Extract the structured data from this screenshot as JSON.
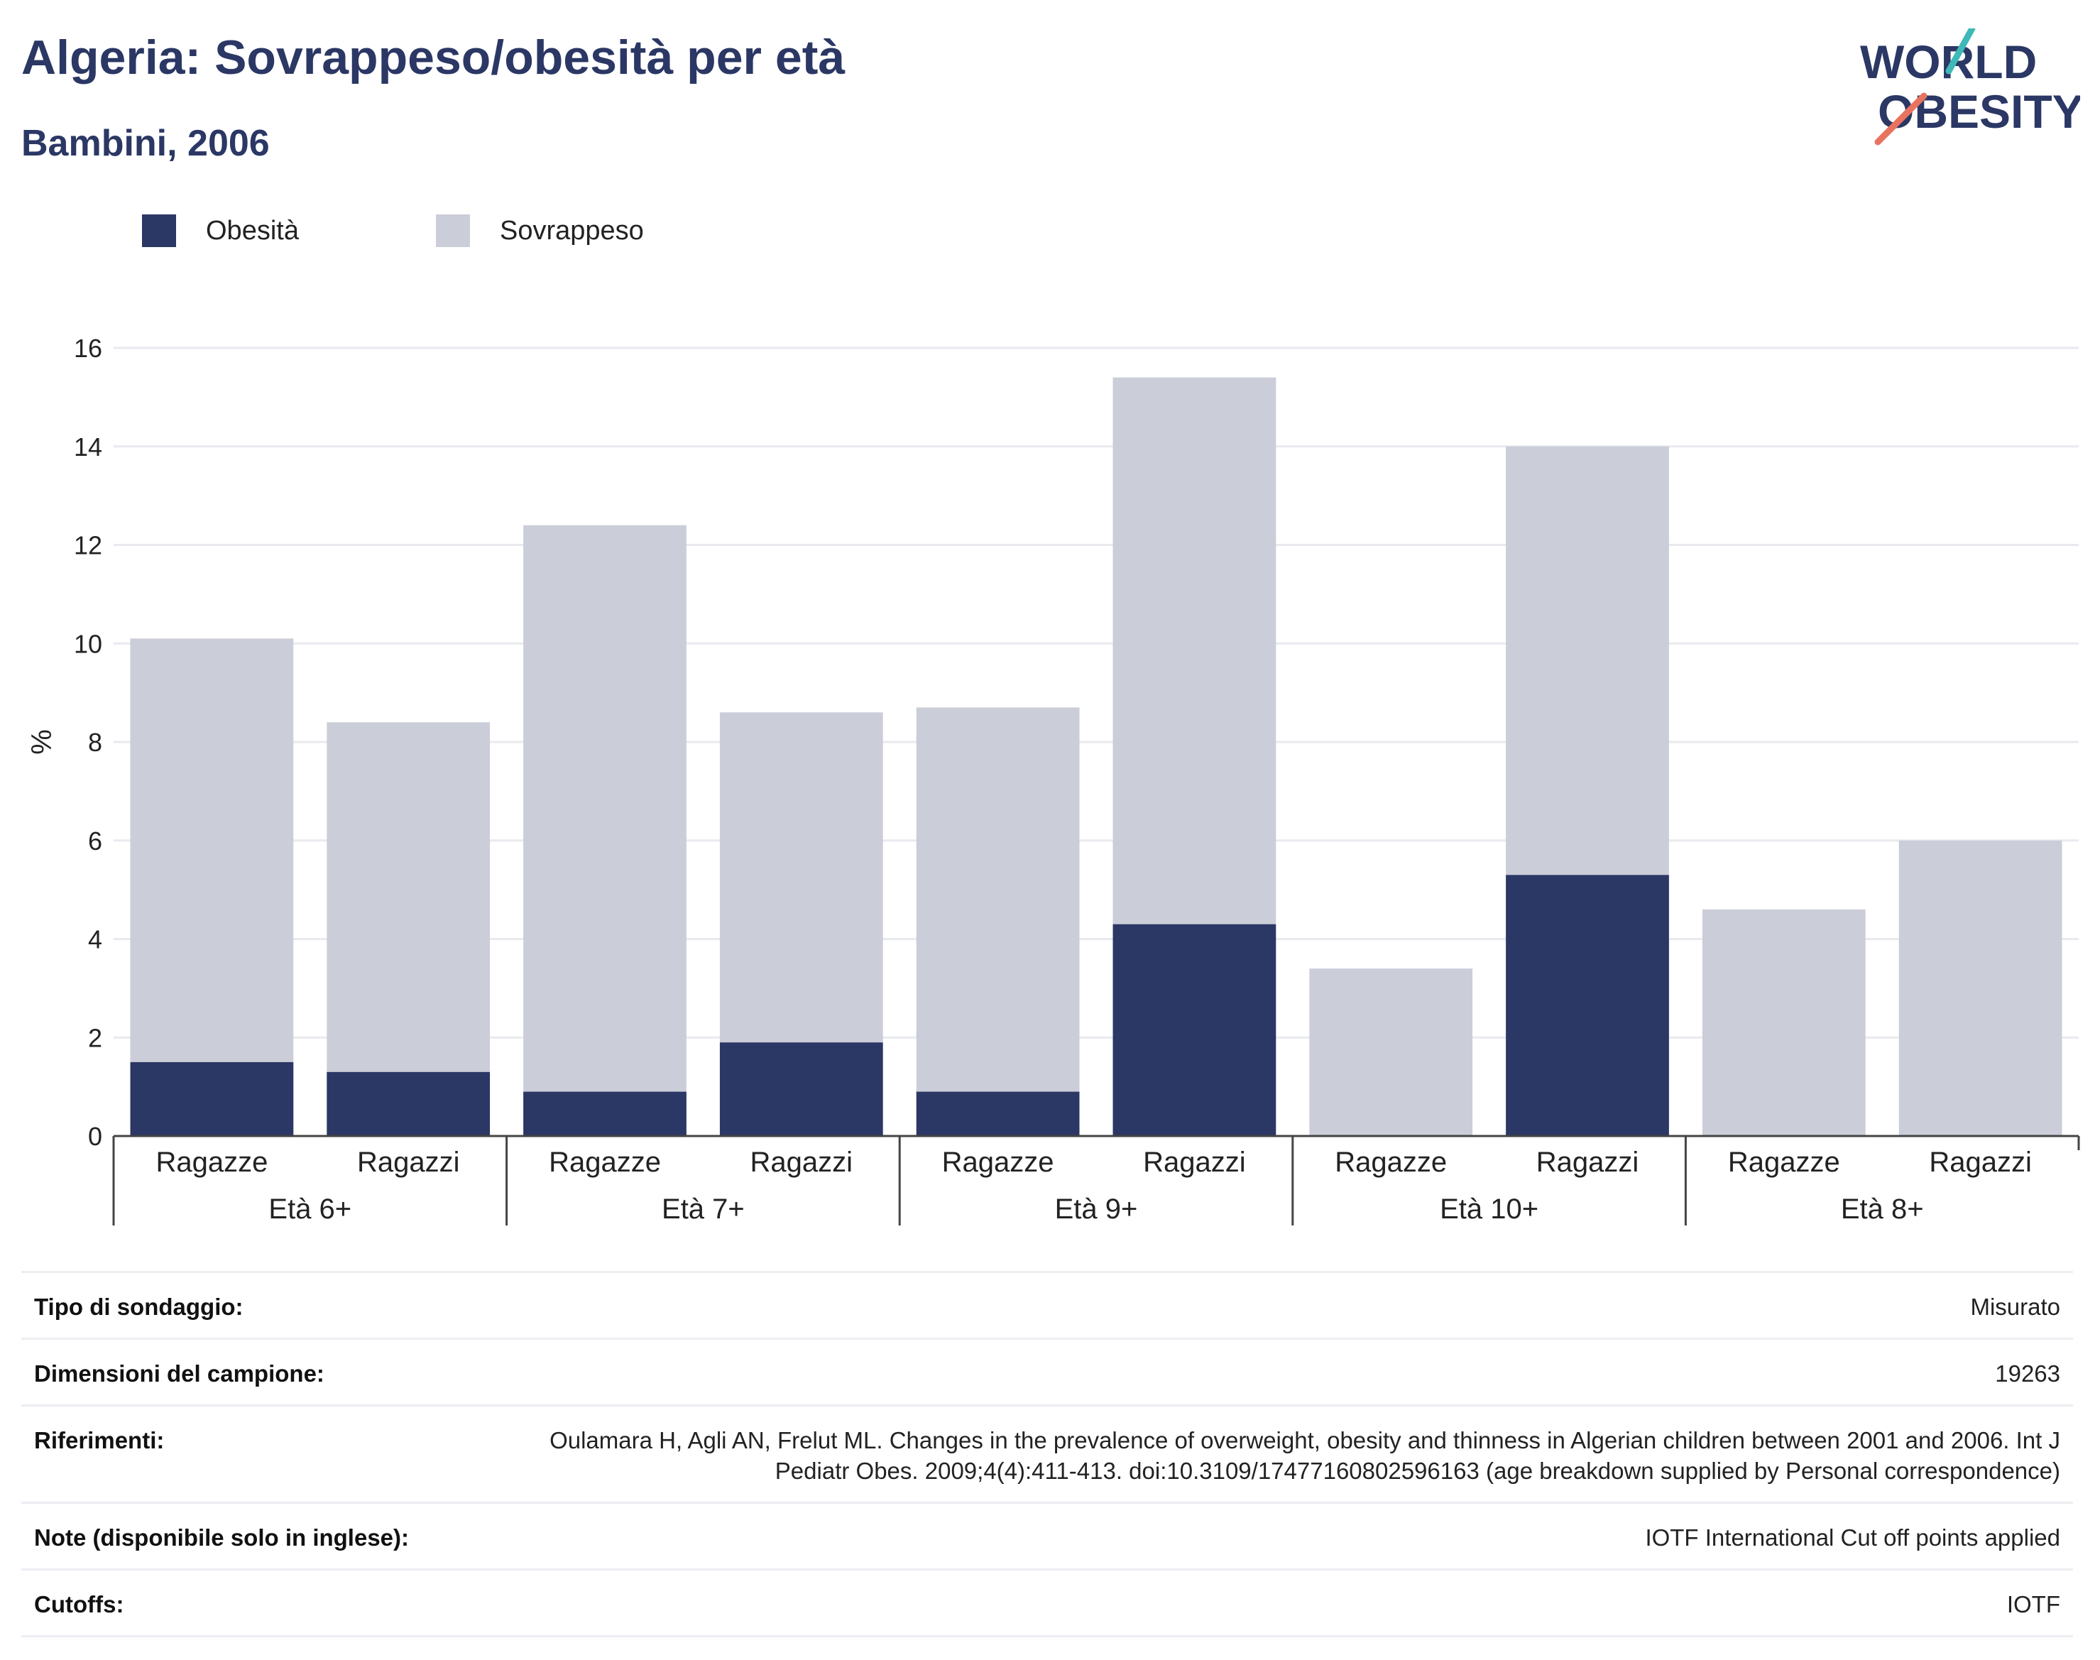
{
  "header": {
    "title": "Algeria: Sovrappeso/obesità per età",
    "subtitle": "Bambini, 2006",
    "logo_line1": "WORLD",
    "logo_line2": "OBESITY"
  },
  "colors": {
    "obesity": "#2b3764",
    "overweight": "#cbcdd8",
    "accent_teal": "#3fb8b8",
    "accent_red": "#e8735f",
    "text_dark": "#2b3764"
  },
  "legend": {
    "items": [
      {
        "label": "Obesità",
        "color": "#2b3764"
      },
      {
        "label": "Sovrappeso",
        "color": "#cbcdd8"
      }
    ]
  },
  "chart_data": {
    "type": "bar",
    "stacked": true,
    "ylabel": "%",
    "ylim": [
      0,
      16
    ],
    "yticks": [
      0,
      2,
      4,
      6,
      8,
      10,
      12,
      14,
      16
    ],
    "grid": true,
    "legend_position": "top-left",
    "groups": [
      {
        "label": "Età 6+",
        "categories": [
          "Ragazze",
          "Ragazzi"
        ]
      },
      {
        "label": "Età 7+",
        "categories": [
          "Ragazze",
          "Ragazzi"
        ]
      },
      {
        "label": "Età 9+",
        "categories": [
          "Ragazze",
          "Ragazzi"
        ]
      },
      {
        "label": "Età 10+",
        "categories": [
          "Ragazze",
          "Ragazzi"
        ]
      },
      {
        "label": "Età 8+",
        "categories": [
          "Ragazze",
          "Ragazzi"
        ]
      }
    ],
    "series": [
      {
        "name": "Obesità",
        "values": [
          1.5,
          1.3,
          0.9,
          1.9,
          0.9,
          4.3,
          0,
          5.3,
          0,
          0
        ]
      },
      {
        "name": "Sovrappeso",
        "values": [
          8.6,
          7.1,
          11.5,
          6.7,
          7.8,
          11.1,
          3.4,
          8.7,
          4.6,
          6.0
        ]
      }
    ]
  },
  "info": {
    "rows": [
      {
        "label": "Tipo di sondaggio:",
        "value": "Misurato"
      },
      {
        "label": "Dimensioni del campione:",
        "value": "19263"
      },
      {
        "label": "Riferimenti:",
        "value": "Oulamara H, Agli AN, Frelut ML. Changes in the prevalence of overweight, obesity and thinness in Algerian children between 2001 and 2006. Int J Pediatr Obes. 2009;4(4):411-413. doi:10.3109/17477160802596163 (age breakdown supplied by Personal correspondence)"
      },
      {
        "label": "Note (disponibile solo in inglese):",
        "value": "IOTF International Cut off points applied"
      },
      {
        "label": "Cutoffs:",
        "value": "IOTF"
      }
    ]
  }
}
